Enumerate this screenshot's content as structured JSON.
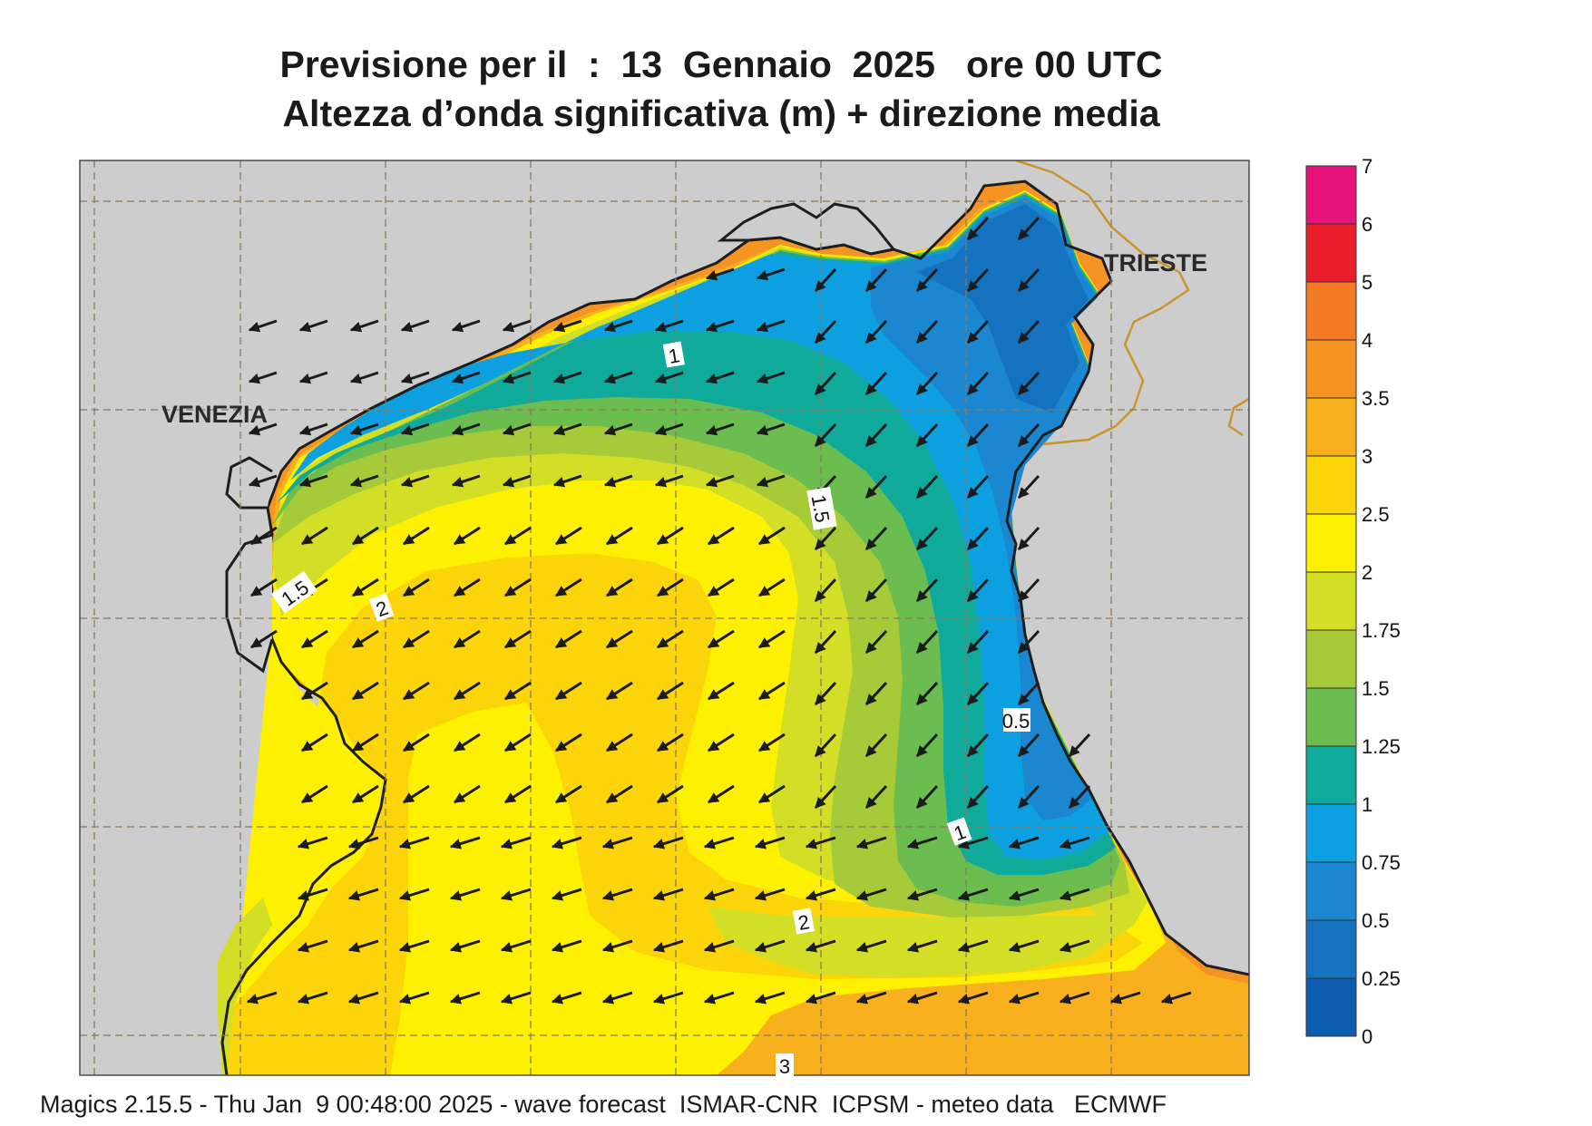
{
  "title": {
    "line1": "Previsione per il  :  13  Gennaio  2025   ore 00 UTC",
    "line2": "Altezza d’onda significativa (m) + direzione media"
  },
  "city_labels": [
    "VENEZIA",
    "TRIESTE"
  ],
  "contour_labels": [
    "1",
    "1.5",
    "0.5",
    "1",
    "1.5",
    "2",
    "2",
    "3"
  ],
  "legend": {
    "ticks": [
      "7",
      "6",
      "5",
      "4",
      "3.5",
      "3",
      "2.5",
      "2",
      "1.75",
      "1.5",
      "1.25",
      "1",
      "0.75",
      "0.5",
      "0.25",
      "0"
    ],
    "colors": [
      "#e7127a",
      "#ea1e2a",
      "#f47a24",
      "#f59423",
      "#f8b01e",
      "#fcd40a",
      "#fdf100",
      "#d3de27",
      "#a7cb38",
      "#6bbd4f",
      "#0faa9a",
      "#0da0e1",
      "#1a87d0",
      "#1472be",
      "#0b5eae"
    ]
  },
  "colors": {
    "land": "#cdcdcd",
    "coast": "#1e1e1e",
    "grid": "#8a7a60",
    "border": "#c8952d",
    "arrow": "#1b1b1b"
  },
  "footer": "Magics 2.15.5 - Thu Jan  9 00:48:00 2025 - wave forecast  ISMAR-CNR  ICPSM - meteo data   ECMWF"
}
